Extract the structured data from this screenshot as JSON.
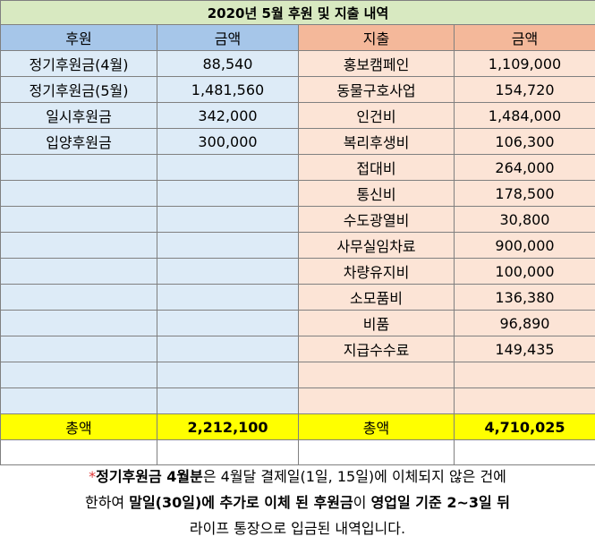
{
  "title": "2020년 5월 후원 및 지출 내역",
  "headers": {
    "donation": "후원",
    "donation_amount": "금액",
    "expense": "지출",
    "expense_amount": "금액"
  },
  "rows": [
    {
      "donation": "정기후원금(4월)",
      "donation_amount": "88,540",
      "expense": "홍보캠페인",
      "expense_amount": "1,109,000"
    },
    {
      "donation": "정기후원금(5월)",
      "donation_amount": "1,481,560",
      "expense": "동물구호사업",
      "expense_amount": "154,720"
    },
    {
      "donation": "일시후원금",
      "donation_amount": "342,000",
      "expense": "인건비",
      "expense_amount": "1,484,000"
    },
    {
      "donation": "입양후원금",
      "donation_amount": "300,000",
      "expense": "복리후생비",
      "expense_amount": "106,300"
    },
    {
      "donation": "",
      "donation_amount": "",
      "expense": "접대비",
      "expense_amount": "264,000"
    },
    {
      "donation": "",
      "donation_amount": "",
      "expense": "통신비",
      "expense_amount": "178,500"
    },
    {
      "donation": "",
      "donation_amount": "",
      "expense": "수도광열비",
      "expense_amount": "30,800"
    },
    {
      "donation": "",
      "donation_amount": "",
      "expense": "사무실임차료",
      "expense_amount": "900,000"
    },
    {
      "donation": "",
      "donation_amount": "",
      "expense": "차량유지비",
      "expense_amount": "100,000"
    },
    {
      "donation": "",
      "donation_amount": "",
      "expense": "소모품비",
      "expense_amount": "136,380"
    },
    {
      "donation": "",
      "donation_amount": "",
      "expense": "비품",
      "expense_amount": "96,890"
    },
    {
      "donation": "",
      "donation_amount": "",
      "expense": "지급수수료",
      "expense_amount": "149,435"
    },
    {
      "donation": "",
      "donation_amount": "",
      "expense": "",
      "expense_amount": ""
    },
    {
      "donation": "",
      "donation_amount": "",
      "expense": "",
      "expense_amount": ""
    }
  ],
  "totals": {
    "donation_label": "총액",
    "donation_value": "2,212,100",
    "expense_label": "총액",
    "expense_value": "4,710,025"
  },
  "note": {
    "star": "*",
    "line1_bold": "정기후원금 4월분",
    "line1_rest": "은 4월달 결제일(1일, 15일)에 이체되지 않은 건에",
    "line2_a": "한하여 ",
    "line2_b": "말일(30일)에 추가로 이체 된 후원금",
    "line2_c": "이 ",
    "line2_d": "영업일 기준 2~3일 뒤",
    "line3": "라이프 통장으로 입금된 내역입니다."
  }
}
